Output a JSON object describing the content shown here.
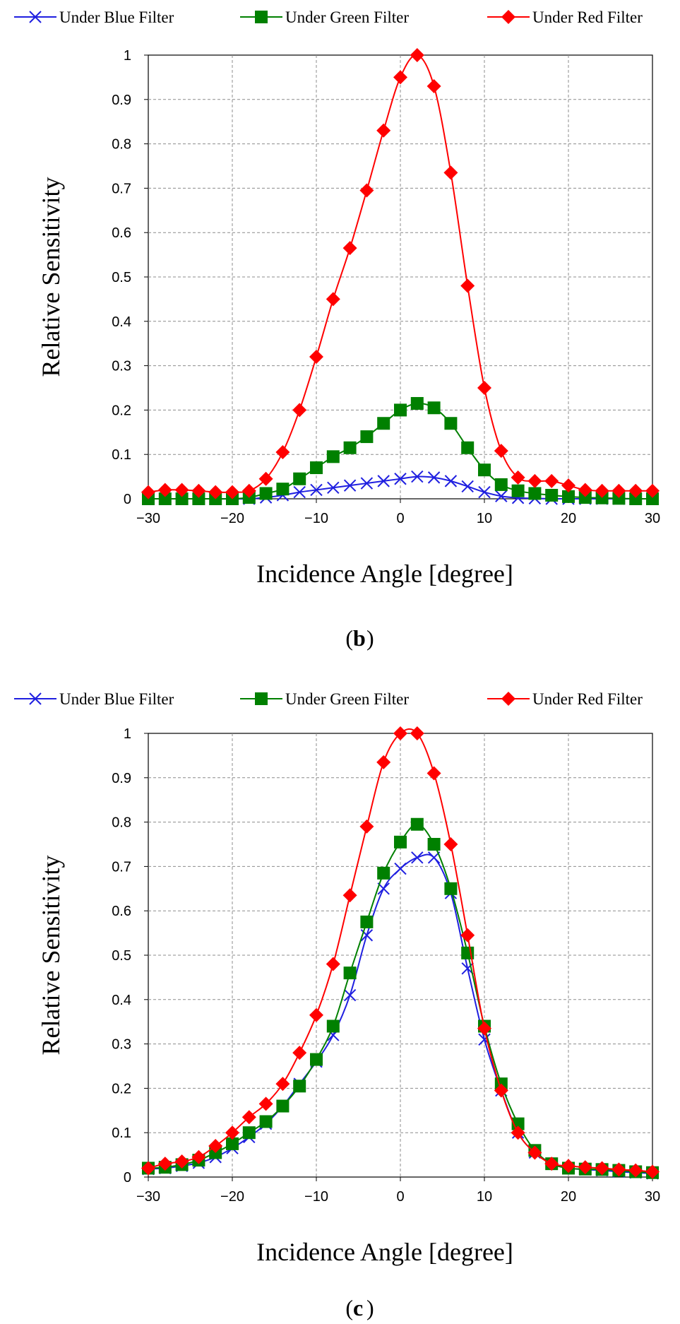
{
  "chart_data": [
    {
      "type": "line",
      "panel_label": "b",
      "xlabel": "Incidence Angle [degree]",
      "ylabel": "Relative Sensitivity",
      "xlim": [
        -30,
        30
      ],
      "ylim": [
        0,
        1
      ],
      "xticks": [
        "-30",
        "-20",
        "-10",
        "0",
        "10",
        "20",
        "30"
      ],
      "yticks": [
        "0",
        "0.1",
        "0.2",
        "0.3",
        "0.4",
        "0.5",
        "0.6",
        "0.7",
        "0.8",
        "0.9",
        "1"
      ],
      "grid": true,
      "legend_position": "top",
      "x": [
        -30,
        -28,
        -26,
        -24,
        -22,
        -20,
        -18,
        -16,
        -14,
        -12,
        -10,
        -8,
        -6,
        -4,
        -2,
        0,
        2,
        4,
        6,
        8,
        10,
        12,
        14,
        16,
        18,
        20,
        22,
        24,
        26,
        28,
        30
      ],
      "series": [
        {
          "name": "Under Blue Filter",
          "color": "#1f1fe0",
          "marker": "x",
          "values": [
            0.0,
            0.0,
            0.0,
            0.0,
            0.0,
            0.0,
            0.0,
            0.003,
            0.008,
            0.015,
            0.02,
            0.025,
            0.03,
            0.035,
            0.04,
            0.045,
            0.05,
            0.048,
            0.04,
            0.028,
            0.015,
            0.006,
            0.002,
            0.001,
            0.0,
            0.0,
            0.0,
            0.0,
            0.0,
            0.0,
            0.0
          ]
        },
        {
          "name": "Under Green Filter",
          "color": "#008000",
          "marker": "square",
          "values": [
            0.0,
            0.0,
            0.0,
            0.0,
            0.0,
            0.0,
            0.003,
            0.012,
            0.022,
            0.045,
            0.07,
            0.095,
            0.115,
            0.14,
            0.17,
            0.2,
            0.215,
            0.205,
            0.17,
            0.115,
            0.065,
            0.032,
            0.018,
            0.012,
            0.008,
            0.005,
            0.003,
            0.002,
            0.001,
            0.0,
            0.0
          ]
        },
        {
          "name": "Under Red Filter",
          "color": "#ff0000",
          "marker": "diamond",
          "values": [
            0.015,
            0.02,
            0.02,
            0.018,
            0.015,
            0.015,
            0.018,
            0.045,
            0.105,
            0.2,
            0.32,
            0.45,
            0.565,
            0.695,
            0.83,
            0.95,
            1.0,
            0.93,
            0.735,
            0.48,
            0.25,
            0.108,
            0.048,
            0.04,
            0.04,
            0.03,
            0.02,
            0.018,
            0.018,
            0.018,
            0.018
          ]
        }
      ]
    },
    {
      "type": "line",
      "panel_label": "c",
      "xlabel": "Incidence Angle [degree]",
      "ylabel": "Relative Sensitivity",
      "xlim": [
        -30,
        30
      ],
      "ylim": [
        0,
        1
      ],
      "xticks": [
        "-30",
        "-20",
        "-10",
        "0",
        "10",
        "20",
        "30"
      ],
      "yticks": [
        "0",
        "0.1",
        "0.2",
        "0.3",
        "0.4",
        "0.5",
        "0.6",
        "0.7",
        "0.8",
        "0.9",
        "1"
      ],
      "grid": true,
      "legend_position": "top",
      "x": [
        -30,
        -28,
        -26,
        -24,
        -22,
        -20,
        -18,
        -16,
        -14,
        -12,
        -10,
        -8,
        -6,
        -4,
        -2,
        0,
        2,
        4,
        6,
        8,
        10,
        12,
        14,
        16,
        18,
        20,
        22,
        24,
        26,
        28,
        30
      ],
      "series": [
        {
          "name": "Under Blue Filter",
          "color": "#1f1fe0",
          "marker": "x",
          "values": [
            0.018,
            0.02,
            0.025,
            0.032,
            0.045,
            0.065,
            0.09,
            0.12,
            0.16,
            0.21,
            0.26,
            0.32,
            0.41,
            0.545,
            0.65,
            0.695,
            0.72,
            0.72,
            0.64,
            0.47,
            0.31,
            0.195,
            0.1,
            0.055,
            0.03,
            0.02,
            0.017,
            0.015,
            0.012,
            0.01,
            0.008
          ]
        },
        {
          "name": "Under Green Filter",
          "color": "#008000",
          "marker": "square",
          "values": [
            0.02,
            0.022,
            0.028,
            0.038,
            0.055,
            0.075,
            0.1,
            0.125,
            0.16,
            0.205,
            0.265,
            0.34,
            0.46,
            0.575,
            0.685,
            0.755,
            0.795,
            0.75,
            0.65,
            0.505,
            0.34,
            0.21,
            0.12,
            0.06,
            0.03,
            0.02,
            0.018,
            0.017,
            0.015,
            0.012,
            0.01
          ]
        },
        {
          "name": "Under Red Filter",
          "color": "#ff0000",
          "marker": "diamond",
          "values": [
            0.02,
            0.03,
            0.035,
            0.045,
            0.07,
            0.1,
            0.135,
            0.165,
            0.21,
            0.28,
            0.365,
            0.48,
            0.635,
            0.79,
            0.935,
            1.0,
            1.0,
            0.91,
            0.75,
            0.545,
            0.335,
            0.195,
            0.1,
            0.055,
            0.03,
            0.025,
            0.022,
            0.02,
            0.017,
            0.015,
            0.012
          ]
        }
      ]
    }
  ]
}
